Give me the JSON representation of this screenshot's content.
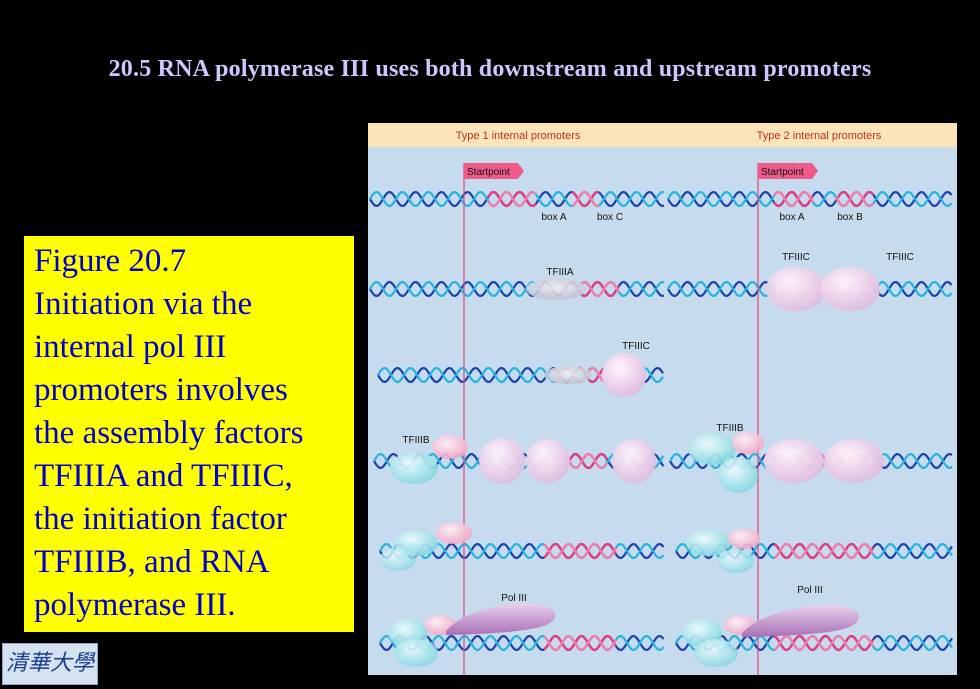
{
  "title": "20.5 RNA polymerase  III  uses both downstream  and upstream  promoters",
  "caption": {
    "lines": [
      "Figure 20.7",
      "Initiation via the",
      "internal pol III",
      "promoters involves",
      "the assembly factors",
      "TFIIIA and TFIIIC,",
      "the initiation factor",
      "TFIIIB,  and RNA",
      "polymerase III."
    ]
  },
  "logo": {
    "text": "清華大學"
  },
  "diagram": {
    "type1_header": "Type 1 internal promoters",
    "type2_header": "Type 2 internal promoters",
    "startpoint_label": "Startpoint",
    "type1": {
      "box_a": "box A",
      "box_c": "box C",
      "tfiiia": "TFIIIA",
      "tfiiic": "TFIIIC",
      "tfiiib": "TFIIIB",
      "pol3": "Pol III"
    },
    "type2": {
      "box_a": "box A",
      "box_b": "box B",
      "tfiiic_left": "TFIIIC",
      "tfiiic_right": "TFIIIC",
      "tfiiib": "TFIIIB",
      "pol3": "Pol III"
    },
    "colors": {
      "dna_blue": "#1a3fae",
      "dna_cyan": "#22b4e0",
      "promoter_pink": "#e23c82",
      "startpoint_line": "#e8457a",
      "header_band": "#fbe5b8",
      "tfiiic_protein": "#e6c7e6",
      "tfiiib_protein": "#9fe0e6",
      "pol3_protein": "#b882c0"
    }
  }
}
